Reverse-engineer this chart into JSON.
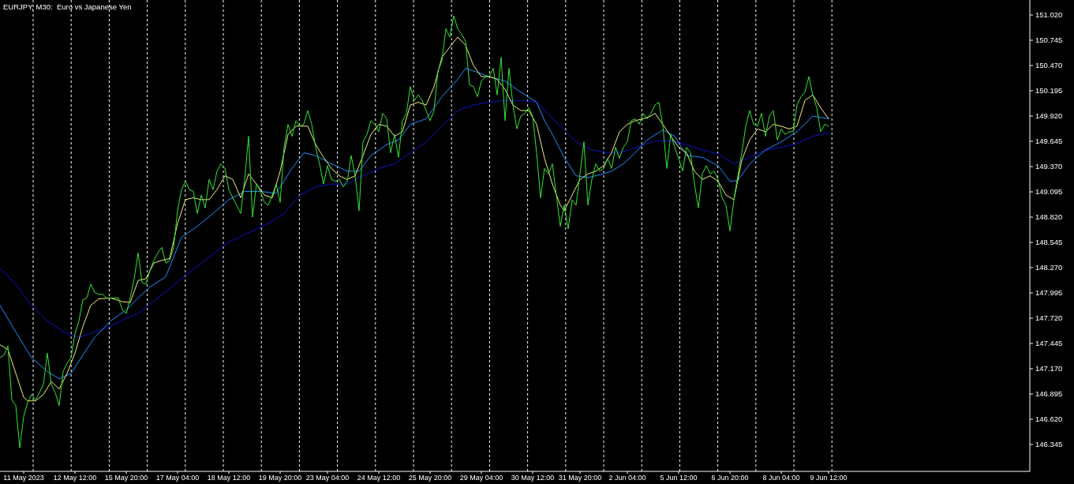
{
  "chart_data": {
    "type": "line",
    "title": "EURJPY, M30:  Euro vs Japanese Yen",
    "ylim": [
      146.053,
      151.183
    ],
    "categories": [
      null,
      null,
      null,
      null,
      null,
      null,
      "11 May 2023",
      null,
      null,
      null,
      null,
      null,
      null,
      null,
      null,
      null,
      null,
      null,
      null,
      "12 May 12:00",
      null,
      null,
      null,
      null,
      null,
      null,
      null,
      null,
      null,
      null,
      null,
      null,
      "15 May 20:00",
      null,
      null,
      null,
      null,
      null,
      null,
      null,
      null,
      null,
      null,
      null,
      null,
      "17 May 04:00",
      null,
      null,
      null,
      null,
      null,
      null,
      null,
      null,
      null,
      null,
      null,
      null,
      "18 May 12:00",
      null,
      null,
      null,
      null,
      null,
      null,
      null,
      null,
      null,
      null,
      null,
      null,
      "19 May 20:00",
      null,
      null,
      null,
      null,
      null,
      null,
      null,
      null,
      null,
      null,
      null,
      "23 May 04:00",
      null,
      null,
      null,
      null,
      null,
      null,
      null,
      null,
      null,
      null,
      null,
      null,
      "24 May 12:00",
      null,
      null,
      null,
      null,
      null,
      null,
      null,
      null,
      null,
      null,
      null,
      null,
      "25 May 20:00",
      null,
      null,
      null,
      null,
      null,
      null,
      null,
      null,
      null,
      null,
      null,
      null,
      "29 May 04:00",
      null,
      null,
      null,
      null,
      null,
      null,
      null,
      null,
      null,
      null,
      null,
      null,
      "30 May 12:00",
      null,
      null,
      null,
      null,
      null,
      null,
      null,
      null,
      null,
      null,
      null,
      "31 May 20:00",
      null,
      null,
      null,
      null,
      null,
      null,
      null,
      null,
      null,
      null,
      null,
      "2 Jun 04:00",
      null,
      null,
      null,
      null,
      null,
      null,
      null,
      null,
      null,
      null,
      null,
      null,
      "5 Jun 12:00",
      null,
      null,
      null,
      null,
      null,
      null,
      null,
      null,
      null,
      null,
      null,
      null,
      "6 Jun 20:00",
      null,
      null,
      null,
      null,
      null,
      null,
      null,
      null,
      null,
      null,
      null,
      null,
      "8 Jun 04:00",
      null,
      null,
      null,
      null,
      null,
      null,
      null,
      null,
      null,
      null,
      null,
      "9 Jun 12:00"
    ],
    "yticks": [
      {
        "value": 146.345,
        "label": "146.345"
      },
      {
        "value": 146.62,
        "label": "146.620"
      },
      {
        "value": 146.895,
        "label": "146.895"
      },
      {
        "value": 147.17,
        "label": "147.170"
      },
      {
        "value": 147.445,
        "label": "147.445"
      },
      {
        "value": 147.72,
        "label": "147.720"
      },
      {
        "value": 147.995,
        "label": "147.995"
      },
      {
        "value": 148.27,
        "label": "148.270"
      },
      {
        "value": 148.545,
        "label": "148.545"
      },
      {
        "value": 148.82,
        "label": "148.820"
      },
      {
        "value": 149.095,
        "label": "149.095"
      },
      {
        "value": 149.37,
        "label": "149.370"
      },
      {
        "value": 149.645,
        "label": "149.645"
      },
      {
        "value": 149.92,
        "label": "149.920"
      },
      {
        "value": 150.195,
        "label": "150.195"
      },
      {
        "value": 150.47,
        "label": "150.470"
      },
      {
        "value": 150.745,
        "label": "150.745"
      },
      {
        "value": 151.02,
        "label": "151.020"
      }
    ],
    "line_style": "solid",
    "series": [
      {
        "color": "#0a14c8",
        "values": [
          148.26,
          null,
          null,
          null,
          148.09,
          null,
          null,
          null,
          147.86,
          null,
          null,
          null,
          147.69,
          null,
          null,
          null,
          147.57,
          null,
          null,
          null,
          147.51,
          null,
          null,
          null,
          147.57,
          null,
          null,
          null,
          147.63,
          null,
          null,
          null,
          147.72,
          null,
          null,
          147.77,
          null,
          null,
          null,
          null,
          147.94,
          null,
          null,
          null,
          null,
          null,
          148.15,
          null,
          null,
          null,
          null,
          null,
          148.35,
          null,
          null,
          null,
          null,
          null,
          148.55,
          null,
          null,
          null,
          null,
          null,
          148.67,
          null,
          null,
          null,
          148.75,
          null,
          null,
          null,
          148.86,
          null,
          null,
          null,
          149.06,
          null,
          null,
          null,
          149.15,
          null,
          null,
          null,
          149.18,
          null,
          null,
          null,
          149.18,
          null,
          null,
          null,
          149.27,
          null,
          null,
          null,
          149.35,
          null,
          null,
          null,
          149.4,
          null,
          null,
          null,
          149.52,
          null,
          null,
          null,
          149.64,
          null,
          null,
          null,
          149.81,
          null,
          null,
          null,
          149.98,
          null,
          null,
          null,
          150.04,
          null,
          null,
          null,
          150.07,
          null,
          null,
          null,
          150.09,
          null,
          null,
          null,
          150.09,
          null,
          null,
          null,
          150.07,
          null,
          149.98,
          null,
          null,
          null,
          149.81,
          null,
          null,
          null,
          149.64,
          null,
          null,
          null,
          149.55,
          null,
          null,
          null,
          149.52,
          null,
          null,
          null,
          149.53,
          null,
          null,
          null,
          149.59,
          null,
          null,
          null,
          149.65,
          null,
          null,
          null,
          149.65,
          null,
          null,
          null,
          149.61,
          null,
          null,
          null,
          149.55,
          null,
          null,
          null,
          149.51,
          null,
          null,
          null,
          149.4,
          null,
          null,
          null,
          149.47,
          null,
          null,
          null,
          149.55,
          null,
          null,
          null,
          149.58,
          null,
          null,
          null,
          149.62,
          null,
          null,
          null,
          149.7,
          null,
          null,
          null,
          149.74
        ]
      },
      {
        "color": "#1e90ff",
        "values": [
          147.86,
          null,
          null,
          null,
          147.57,
          null,
          null,
          null,
          147.29,
          null,
          null,
          null,
          147.14,
          null,
          null,
          147.06,
          null,
          null,
          147.12,
          null,
          null,
          147.32,
          null,
          null,
          147.51,
          null,
          null,
          null,
          147.69,
          null,
          null,
          null,
          147.81,
          null,
          null,
          147.94,
          null,
          null,
          148.06,
          null,
          null,
          null,
          148.17,
          null,
          null,
          null,
          148.6,
          null,
          null,
          null,
          148.72,
          null,
          null,
          null,
          148.86,
          null,
          null,
          null,
          149.01,
          null,
          null,
          null,
          149.1,
          null,
          null,
          null,
          149.1,
          null,
          null,
          null,
          149.08,
          null,
          null,
          null,
          149.35,
          null,
          null,
          149.52,
          null,
          null,
          149.49,
          null,
          null,
          null,
          149.4,
          null,
          null,
          null,
          149.32,
          null,
          null,
          149.32,
          null,
          null,
          149.49,
          null,
          null,
          null,
          149.61,
          null,
          null,
          149.66,
          null,
          null,
          149.83,
          null,
          null,
          null,
          149.89,
          null,
          null,
          null,
          150.13,
          null,
          null,
          null,
          150.32,
          null,
          150.44,
          null,
          150.41,
          null,
          null,
          null,
          150.35,
          null,
          null,
          null,
          150.3,
          null,
          null,
          null,
          150.18,
          null,
          null,
          null,
          150.07,
          null,
          149.87,
          null,
          149.72,
          null,
          null,
          149.47,
          null,
          null,
          149.27,
          null,
          null,
          149.25,
          null,
          null,
          149.28,
          null,
          null,
          149.32,
          null,
          null,
          149.4,
          null,
          null,
          149.52,
          null,
          null,
          149.66,
          null,
          null,
          null,
          149.77,
          null,
          null,
          149.7,
          null,
          null,
          149.49,
          null,
          null,
          null,
          149.47,
          null,
          null,
          null,
          149.38,
          null,
          null,
          149.21,
          null,
          149.22,
          null,
          null,
          149.4,
          null,
          null,
          null,
          149.55,
          null,
          null,
          null,
          149.64,
          null,
          null,
          null,
          149.75,
          null,
          null,
          null,
          149.92,
          null,
          null,
          null,
          149.89
        ]
      },
      {
        "color": "#f0f078",
        "values": [
          147.43,
          null,
          147.38,
          null,
          147.12,
          null,
          146.86,
          146.82,
          null,
          146.82,
          null,
          146.89,
          null,
          147.03,
          null,
          146.95,
          null,
          147.12,
          null,
          147.34,
          null,
          147.63,
          null,
          147.86,
          null,
          147.93,
          null,
          null,
          147.94,
          null,
          null,
          147.9,
          null,
          147.89,
          null,
          148.13,
          null,
          148.15,
          null,
          148.32,
          null,
          148.35,
          null,
          148.37,
          null,
          148.75,
          null,
          149.01,
          null,
          149.03,
          null,
          149.01,
          null,
          149.01,
          null,
          149.12,
          null,
          149.27,
          null,
          149.23,
          null,
          149.03,
          null,
          149.29,
          null,
          149.18,
          null,
          149.06,
          null,
          149.03,
          null,
          149.32,
          null,
          149.72,
          null,
          149.81,
          null,
          149.81,
          149.81,
          null,
          149.61,
          null,
          149.47,
          null,
          149.35,
          null,
          149.27,
          null,
          149.23,
          null,
          149.27,
          null,
          149.49,
          null,
          149.72,
          null,
          149.83,
          null,
          149.81,
          null,
          149.7,
          null,
          149.75,
          null,
          150.04,
          null,
          150.07,
          null,
          150.04,
          null,
          150.24,
          null,
          150.56,
          null,
          150.67,
          null,
          150.78,
          null,
          150.69,
          null,
          150.47,
          null,
          150.35,
          null,
          150.35,
          null,
          150.32,
          null,
          150.21,
          null,
          150.04,
          null,
          149.98,
          null,
          149.98,
          null,
          149.83,
          null,
          149.46,
          null,
          149.18,
          null,
          148.95,
          148.89,
          null,
          149.06,
          null,
          149.23,
          null,
          149.29,
          null,
          149.32,
          null,
          149.38,
          null,
          149.52,
          null,
          149.75,
          null,
          149.83,
          null,
          149.87,
          null,
          149.89,
          null,
          149.92,
          149.95,
          null,
          149.83,
          null,
          149.7,
          null,
          149.58,
          null,
          149.52,
          null,
          149.32,
          null,
          149.23,
          null,
          149.27,
          null,
          149.21,
          null,
          149.06,
          null,
          149.01,
          null,
          149.44,
          null,
          149.66,
          null,
          149.78,
          null,
          149.75,
          null,
          149.83,
          null,
          149.81,
          null,
          149.78,
          null,
          149.81,
          null,
          150.09,
          null,
          150.15,
          null,
          150.01,
          null,
          149.89
        ]
      },
      {
        "color": "#32e632",
        "values": [
          147.29,
          147.32,
          147.42,
          146.83,
          146.77,
          146.31,
          146.65,
          146.8,
          146.89,
          146.83,
          146.91,
          147.0,
          147.34,
          147.0,
          146.91,
          146.77,
          147.14,
          147.23,
          147.29,
          147.55,
          147.69,
          147.92,
          147.94,
          148.09,
          148.0,
          147.98,
          147.98,
          147.94,
          147.94,
          147.94,
          147.94,
          147.81,
          147.77,
          147.94,
          148.15,
          148.43,
          148.11,
          148.09,
          148.24,
          148.35,
          148.43,
          148.49,
          148.32,
          148.35,
          148.49,
          148.89,
          149.12,
          149.21,
          149.12,
          149.1,
          148.86,
          149.06,
          148.92,
          149.23,
          149.12,
          149.32,
          149.4,
          149.35,
          149.12,
          149.03,
          148.95,
          148.86,
          149.23,
          149.7,
          148.82,
          149.18,
          149.1,
          148.98,
          148.95,
          149.06,
          149.18,
          148.98,
          149.58,
          149.83,
          149.7,
          149.87,
          149.81,
          149.83,
          149.98,
          149.83,
          149.58,
          149.4,
          149.18,
          149.38,
          149.23,
          149.21,
          149.23,
          149.15,
          149.21,
          149.49,
          149.27,
          148.89,
          149.64,
          149.72,
          149.87,
          149.83,
          149.75,
          149.95,
          149.89,
          149.52,
          149.72,
          149.47,
          149.87,
          149.95,
          150.24,
          150.09,
          150.15,
          150.09,
          149.98,
          149.87,
          149.98,
          150.41,
          150.52,
          150.87,
          150.78,
          151.01,
          150.87,
          150.81,
          150.73,
          150.26,
          150.24,
          150.13,
          150.3,
          150.35,
          150.35,
          150.44,
          150.15,
          150.56,
          149.87,
          150.44,
          150.04,
          149.78,
          149.92,
          149.95,
          150.01,
          149.92,
          149.52,
          149.03,
          149.35,
          149.29,
          149.4,
          149.06,
          148.72,
          148.95,
          148.69,
          149.01,
          148.95,
          149.29,
          149.64,
          148.95,
          149.23,
          149.4,
          149.32,
          149.35,
          149.46,
          149.35,
          149.58,
          149.46,
          149.58,
          149.64,
          149.87,
          149.89,
          149.83,
          149.95,
          149.89,
          149.95,
          150.04,
          150.07,
          149.81,
          149.35,
          149.72,
          149.58,
          149.46,
          149.32,
          149.58,
          149.52,
          149.18,
          148.92,
          149.29,
          149.38,
          149.29,
          149.32,
          149.23,
          149.03,
          148.95,
          148.67,
          149.01,
          149.27,
          149.52,
          149.81,
          149.98,
          149.83,
          149.81,
          149.95,
          149.7,
          149.92,
          149.98,
          149.66,
          149.78,
          149.72,
          149.75,
          149.75,
          150.04,
          150.13,
          150.18,
          150.35,
          150.15,
          150.01,
          149.75,
          149.83,
          149.81
        ]
      }
    ]
  }
}
